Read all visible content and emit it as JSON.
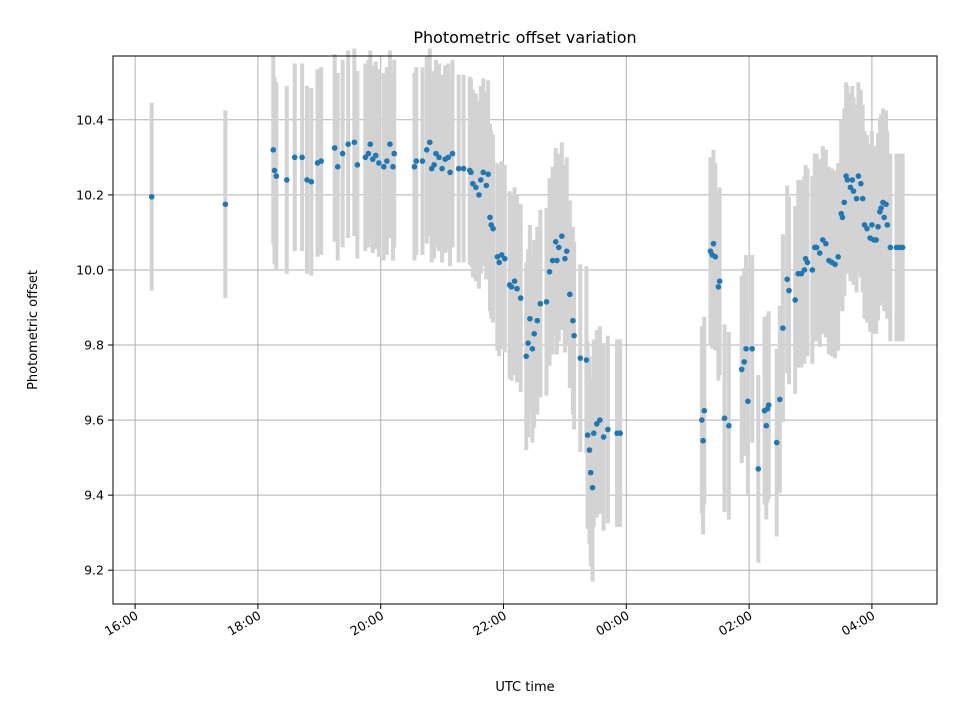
{
  "chart_data": {
    "type": "scatter",
    "title": "Photometric offset variation",
    "xlabel": "UTC time",
    "ylabel": "Photometric offset",
    "x_unit": "hours since 16:00 UTC",
    "xlim": [
      -0.36,
      13.06
    ],
    "ylim": [
      9.11,
      10.57
    ],
    "x_ticks": [
      {
        "value": 0,
        "label": "16:00"
      },
      {
        "value": 2,
        "label": "18:00"
      },
      {
        "value": 4,
        "label": "20:00"
      },
      {
        "value": 6,
        "label": "22:00"
      },
      {
        "value": 8,
        "label": "00:00"
      },
      {
        "value": 10,
        "label": "02:00"
      },
      {
        "value": 12,
        "label": "04:00"
      }
    ],
    "y_ticks": [
      {
        "value": 9.2,
        "label": "9.2"
      },
      {
        "value": 9.4,
        "label": "9.4"
      },
      {
        "value": 9.6,
        "label": "9.6"
      },
      {
        "value": 9.8,
        "label": "9.8"
      },
      {
        "value": 10.0,
        "label": "10.0"
      },
      {
        "value": 10.2,
        "label": "10.2"
      },
      {
        "value": 10.4,
        "label": "10.4"
      }
    ],
    "grid": true,
    "colors": {
      "marker": "#1f77b4",
      "errorbar": "#d3d3d3"
    },
    "series": [
      {
        "error": 0.25,
        "points": [
          [
            0.27,
            10.195
          ],
          [
            1.47,
            10.175
          ],
          [
            2.25,
            10.32
          ],
          [
            2.27,
            10.265
          ],
          [
            2.3,
            10.25
          ],
          [
            2.47,
            10.24
          ],
          [
            2.6,
            10.3
          ],
          [
            2.72,
            10.3
          ],
          [
            2.8,
            10.24
          ],
          [
            2.87,
            10.235
          ],
          [
            2.97,
            10.285
          ],
          [
            3.03,
            10.29
          ],
          [
            3.25,
            10.325
          ],
          [
            3.3,
            10.275
          ],
          [
            3.38,
            10.31
          ],
          [
            3.47,
            10.335
          ],
          [
            3.57,
            10.34
          ],
          [
            3.62,
            10.28
          ],
          [
            3.75,
            10.3
          ],
          [
            3.8,
            10.31
          ],
          [
            3.83,
            10.335
          ],
          [
            3.87,
            10.295
          ],
          [
            3.92,
            10.305
          ],
          [
            3.97,
            10.285
          ],
          [
            4.05,
            10.275
          ],
          [
            4.1,
            10.29
          ],
          [
            4.15,
            10.335
          ],
          [
            4.2,
            10.275
          ],
          [
            4.22,
            10.31
          ],
          [
            4.55,
            10.275
          ],
          [
            4.58,
            10.29
          ],
          [
            4.68,
            10.29
          ],
          [
            4.75,
            10.32
          ],
          [
            4.8,
            10.34
          ],
          [
            4.83,
            10.27
          ],
          [
            4.87,
            10.28
          ],
          [
            4.9,
            10.31
          ],
          [
            4.95,
            10.3
          ],
          [
            5.0,
            10.27
          ],
          [
            5.05,
            10.295
          ],
          [
            5.1,
            10.3
          ],
          [
            5.13,
            10.26
          ],
          [
            5.17,
            10.31
          ],
          [
            5.27,
            10.27
          ],
          [
            5.35,
            10.27
          ],
          [
            5.45,
            10.265
          ],
          [
            5.47,
            10.26
          ],
          [
            5.5,
            10.23
          ],
          [
            5.55,
            10.22
          ],
          [
            5.6,
            10.2
          ],
          [
            5.63,
            10.24
          ],
          [
            5.67,
            10.26
          ],
          [
            5.72,
            10.225
          ],
          [
            5.75,
            10.255
          ],
          [
            5.78,
            10.14
          ],
          [
            5.8,
            10.12
          ],
          [
            5.83,
            10.11
          ],
          [
            5.9,
            10.035
          ],
          [
            5.93,
            10.02
          ],
          [
            5.97,
            10.04
          ],
          [
            6.02,
            10.03
          ],
          [
            6.1,
            9.96
          ],
          [
            6.13,
            9.955
          ],
          [
            6.18,
            9.97
          ],
          [
            6.22,
            9.95
          ],
          [
            6.28,
            9.925
          ],
          [
            6.37,
            9.77
          ],
          [
            6.4,
            9.805
          ],
          [
            6.43,
            9.87
          ],
          [
            6.47,
            9.79
          ],
          [
            6.5,
            9.83
          ],
          [
            6.55,
            9.865
          ],
          [
            6.6,
            9.91
          ],
          [
            6.7,
            9.915
          ],
          [
            6.75,
            9.995
          ],
          [
            6.8,
            10.025
          ],
          [
            6.85,
            10.075
          ],
          [
            6.87,
            10.025
          ],
          [
            6.9,
            10.06
          ],
          [
            6.95,
            10.09
          ],
          [
            7.0,
            10.03
          ],
          [
            7.03,
            10.05
          ],
          [
            7.08,
            9.935
          ],
          [
            7.13,
            9.865
          ],
          [
            7.15,
            9.825
          ],
          [
            7.25,
            9.765
          ],
          [
            7.35,
            9.76
          ],
          [
            7.37,
            9.56
          ],
          [
            7.4,
            9.52
          ],
          [
            7.42,
            9.46
          ],
          [
            7.45,
            9.42
          ],
          [
            7.47,
            9.565
          ],
          [
            7.52,
            9.59
          ],
          [
            7.57,
            9.6
          ],
          [
            7.63,
            9.555
          ],
          [
            7.7,
            9.575
          ],
          [
            7.85,
            9.565
          ],
          [
            7.9,
            9.565
          ],
          [
            9.23,
            9.6
          ],
          [
            9.25,
            9.545
          ],
          [
            9.27,
            9.625
          ],
          [
            9.37,
            10.05
          ],
          [
            9.4,
            10.04
          ],
          [
            9.42,
            10.07
          ],
          [
            9.45,
            10.035
          ],
          [
            9.5,
            9.955
          ],
          [
            9.52,
            9.97
          ],
          [
            9.6,
            9.605
          ],
          [
            9.67,
            9.585
          ],
          [
            9.88,
            9.735
          ],
          [
            9.92,
            9.755
          ],
          [
            9.95,
            9.79
          ],
          [
            9.98,
            9.65
          ],
          [
            10.05,
            9.79
          ],
          [
            10.15,
            9.47
          ],
          [
            10.25,
            9.625
          ],
          [
            10.28,
            9.585
          ],
          [
            10.3,
            9.63
          ],
          [
            10.32,
            9.64
          ],
          [
            10.45,
            9.54
          ],
          [
            10.5,
            9.655
          ],
          [
            10.55,
            9.845
          ],
          [
            10.62,
            9.975
          ],
          [
            10.65,
            9.945
          ],
          [
            10.75,
            9.92
          ],
          [
            10.8,
            9.99
          ],
          [
            10.85,
            9.99
          ],
          [
            10.9,
            10.0
          ],
          [
            10.92,
            10.03
          ],
          [
            10.95,
            10.02
          ],
          [
            11.03,
            10.0
          ],
          [
            11.07,
            10.06
          ],
          [
            11.1,
            10.06
          ],
          [
            11.15,
            10.045
          ],
          [
            11.2,
            10.08
          ],
          [
            11.25,
            10.07
          ],
          [
            11.3,
            10.025
          ],
          [
            11.35,
            10.02
          ],
          [
            11.4,
            10.015
          ],
          [
            11.45,
            10.035
          ],
          [
            11.5,
            10.15
          ],
          [
            11.52,
            10.14
          ],
          [
            11.55,
            10.18
          ],
          [
            11.58,
            10.25
          ],
          [
            11.6,
            10.24
          ],
          [
            11.65,
            10.22
          ],
          [
            11.68,
            10.24
          ],
          [
            11.7,
            10.21
          ],
          [
            11.75,
            10.19
          ],
          [
            11.78,
            10.25
          ],
          [
            11.82,
            10.23
          ],
          [
            11.85,
            10.19
          ],
          [
            11.88,
            10.12
          ],
          [
            11.92,
            10.11
          ],
          [
            11.97,
            10.085
          ],
          [
            12.0,
            10.12
          ],
          [
            12.03,
            10.08
          ],
          [
            12.07,
            10.08
          ],
          [
            12.1,
            10.115
          ],
          [
            12.13,
            10.155
          ],
          [
            12.15,
            10.165
          ],
          [
            12.18,
            10.18
          ],
          [
            12.2,
            10.14
          ],
          [
            12.23,
            10.175
          ],
          [
            12.25,
            10.12
          ],
          [
            12.3,
            10.06
          ],
          [
            12.4,
            10.06
          ],
          [
            12.45,
            10.06
          ],
          [
            12.5,
            10.06
          ]
        ]
      }
    ]
  }
}
